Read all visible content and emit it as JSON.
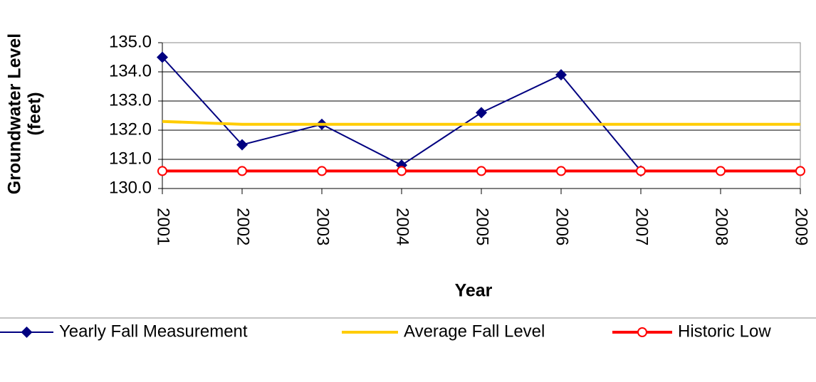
{
  "chart_data": {
    "type": "line",
    "xlabel": "Year",
    "ylabel": [
      "Groundwater Level",
      "(feet)"
    ],
    "categories": [
      "2001",
      "2002",
      "2003",
      "2004",
      "2005",
      "2006",
      "2007",
      "2008",
      "2009"
    ],
    "series": [
      {
        "name": "Yearly Fall Measurement",
        "color": "#000080",
        "marker": "diamond",
        "values": [
          134.5,
          131.5,
          132.2,
          130.8,
          132.6,
          133.9,
          130.6,
          null,
          null
        ]
      },
      {
        "name": "Average Fall Level",
        "color": "#FFCC00",
        "marker": "none",
        "values": [
          132.3,
          132.2,
          132.2,
          132.2,
          132.2,
          132.2,
          132.2,
          132.2,
          132.2
        ]
      },
      {
        "name": "Historic Low",
        "color": "#FF0000",
        "marker": "circle",
        "values": [
          130.6,
          130.6,
          130.6,
          130.6,
          130.6,
          130.6,
          130.6,
          130.6,
          130.6
        ]
      }
    ],
    "ylim": [
      130,
      135
    ],
    "yticks": [
      {
        "value": 130,
        "label": "130.0"
      },
      {
        "value": 131,
        "label": "131.0"
      },
      {
        "value": 132,
        "label": "132.0"
      },
      {
        "value": 133,
        "label": "133.0"
      },
      {
        "value": 134,
        "label": "134.0"
      },
      {
        "value": 135,
        "label": "135.0"
      }
    ],
    "grid": true,
    "legend": "bottom"
  }
}
